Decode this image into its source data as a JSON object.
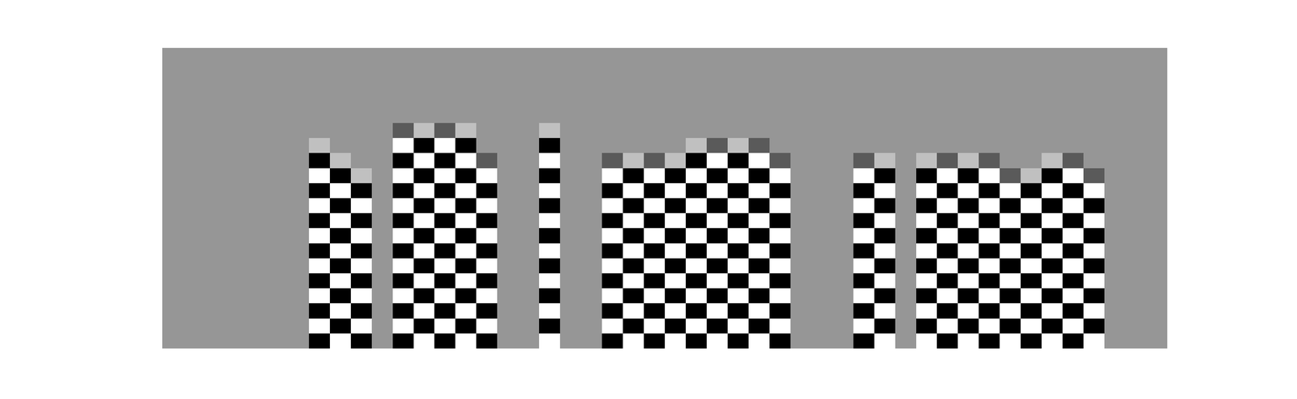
{
  "chart_data": {
    "type": "heatmap",
    "tick_labels": false,
    "grid": false,
    "xlim": [
      -0.5,
      47.5
    ],
    "ylim": [
      19.5,
      -0.5
    ],
    "zlim": [
      -1,
      1
    ],
    "z": [
      [
        0,
        0,
        0,
        0,
        0,
        0,
        0,
        0,
        0,
        0,
        0,
        0,
        0,
        0,
        0,
        0,
        0,
        0,
        0,
        0,
        0,
        0,
        0,
        0,
        0,
        0,
        0,
        0,
        0,
        0,
        0,
        0,
        0,
        0,
        0,
        0,
        0,
        0,
        0,
        0,
        0,
        0,
        0,
        0,
        0,
        0,
        0,
        0
      ],
      [
        0,
        0,
        0,
        0,
        0,
        0,
        0,
        0,
        0,
        0,
        0,
        0,
        0,
        0,
        0,
        0,
        0,
        0,
        0,
        0,
        0,
        0,
        0,
        0,
        0,
        0,
        0,
        0,
        0,
        0,
        0,
        0,
        0,
        0,
        0,
        0,
        0,
        0,
        0,
        0,
        0,
        0,
        0,
        0,
        0,
        0,
        0,
        0
      ],
      [
        0,
        0,
        0,
        0,
        0,
        0,
        0,
        0,
        0,
        0,
        0,
        0,
        0,
        0,
        0,
        0,
        0,
        0,
        0,
        0,
        0,
        0,
        0,
        0,
        0,
        0,
        0,
        0,
        0,
        0,
        0,
        0,
        0,
        0,
        0,
        0,
        0,
        0,
        0,
        0,
        0,
        0,
        0,
        0,
        0,
        0,
        0,
        0
      ],
      [
        0,
        0,
        0,
        0,
        0,
        0,
        0,
        0,
        0,
        0,
        0,
        0,
        0,
        0,
        0,
        0,
        0,
        0,
        0,
        0,
        0,
        0,
        0,
        0,
        0,
        0,
        0,
        0,
        0,
        0,
        0,
        0,
        0,
        0,
        0,
        0,
        0,
        0,
        0,
        0,
        0,
        0,
        0,
        0,
        0,
        0,
        0,
        0
      ],
      [
        0,
        0,
        0,
        0,
        0,
        0,
        0,
        0,
        0,
        0,
        0,
        0,
        0,
        0,
        0,
        0,
        0,
        0,
        0,
        0,
        0,
        0,
        0,
        0,
        0,
        0,
        0,
        0,
        0,
        0,
        0,
        0,
        0,
        0,
        0,
        0,
        0,
        0,
        0,
        0,
        0,
        0,
        0,
        0,
        0,
        0,
        0,
        0
      ],
      [
        0,
        0,
        0,
        0,
        0,
        0,
        0,
        0,
        0,
        0,
        0,
        -0.4,
        0.4,
        -0.4,
        0.4,
        0,
        0,
        0,
        0.4,
        0,
        0,
        0,
        0,
        0,
        0,
        0,
        0,
        0,
        0,
        0,
        0,
        0,
        0,
        0,
        0,
        0,
        0,
        0,
        0,
        0,
        0,
        0,
        0,
        0,
        0,
        0,
        0,
        0
      ],
      [
        0,
        0,
        0,
        0,
        0,
        0,
        0,
        0.4,
        0,
        0,
        0,
        1,
        -1,
        1,
        -1,
        0,
        0,
        0,
        -1,
        0,
        0,
        0,
        0,
        0,
        0,
        0.4,
        -0.4,
        0.4,
        -0.4,
        0,
        0,
        0,
        0,
        0,
        0,
        0,
        0,
        0,
        0,
        0,
        0,
        0,
        0,
        0,
        0,
        0,
        0,
        0
      ],
      [
        0,
        0,
        0,
        0,
        0,
        0,
        0,
        -1,
        0.4,
        0,
        0,
        -1,
        1,
        -1,
        1,
        -0.4,
        0,
        0,
        1,
        0,
        0,
        -0.4,
        0.4,
        -0.4,
        0.4,
        -1,
        1,
        -1,
        1,
        -0.4,
        0,
        0,
        0,
        -0.4,
        0.4,
        0,
        0.4,
        -0.4,
        0.4,
        -0.4,
        0,
        0,
        0.4,
        -0.4,
        0,
        0,
        0,
        0
      ],
      [
        0,
        0,
        0,
        0,
        0,
        0,
        0,
        1,
        -1,
        0.4,
        0,
        1,
        -1,
        1,
        -1,
        1,
        0,
        0,
        -1,
        0,
        0,
        1,
        -1,
        1,
        -1,
        1,
        -1,
        1,
        -1,
        1,
        0,
        0,
        0,
        1,
        -1,
        0,
        -1,
        1,
        -1,
        1,
        -0.4,
        0.4,
        -1,
        1,
        -0.4,
        0,
        0,
        0
      ],
      [
        0,
        0,
        0,
        0,
        0,
        0,
        0,
        -1,
        1,
        -1,
        0,
        -1,
        1,
        -1,
        1,
        -1,
        0,
        0,
        1,
        0,
        0,
        -1,
        1,
        -1,
        1,
        -1,
        1,
        -1,
        1,
        -1,
        0,
        0,
        0,
        -1,
        1,
        0,
        1,
        -1,
        1,
        -1,
        1,
        -1,
        1,
        -1,
        1,
        0,
        0,
        0
      ],
      [
        0,
        0,
        0,
        0,
        0,
        0,
        0,
        1,
        -1,
        1,
        0,
        1,
        -1,
        1,
        -1,
        1,
        0,
        0,
        -1,
        0,
        0,
        1,
        -1,
        1,
        -1,
        1,
        -1,
        1,
        -1,
        1,
        0,
        0,
        0,
        1,
        -1,
        0,
        -1,
        1,
        -1,
        1,
        -1,
        1,
        -1,
        1,
        -1,
        0,
        0,
        0
      ],
      [
        0,
        0,
        0,
        0,
        0,
        0,
        0,
        -1,
        1,
        -1,
        0,
        -1,
        1,
        -1,
        1,
        -1,
        0,
        0,
        1,
        0,
        0,
        -1,
        1,
        -1,
        1,
        -1,
        1,
        -1,
        1,
        -1,
        0,
        0,
        0,
        -1,
        1,
        0,
        1,
        -1,
        1,
        -1,
        1,
        -1,
        1,
        -1,
        1,
        0,
        0,
        0
      ],
      [
        0,
        0,
        0,
        0,
        0,
        0,
        0,
        1,
        -1,
        1,
        0,
        1,
        -1,
        1,
        -1,
        1,
        0,
        0,
        -1,
        0,
        0,
        1,
        -1,
        1,
        -1,
        1,
        -1,
        1,
        -1,
        1,
        0,
        0,
        0,
        1,
        -1,
        0,
        -1,
        1,
        -1,
        1,
        -1,
        1,
        -1,
        1,
        -1,
        0,
        0,
        0
      ],
      [
        0,
        0,
        0,
        0,
        0,
        0,
        0,
        -1,
        1,
        -1,
        0,
        -1,
        1,
        -1,
        1,
        -1,
        0,
        0,
        1,
        0,
        0,
        -1,
        1,
        -1,
        1,
        -1,
        1,
        -1,
        1,
        -1,
        0,
        0,
        0,
        -1,
        1,
        0,
        1,
        -1,
        1,
        -1,
        1,
        -1,
        1,
        -1,
        1,
        0,
        0,
        0
      ],
      [
        0,
        0,
        0,
        0,
        0,
        0,
        0,
        1,
        -1,
        1,
        0,
        1,
        -1,
        1,
        -1,
        1,
        0,
        0,
        -1,
        0,
        0,
        1,
        -1,
        1,
        -1,
        1,
        -1,
        1,
        -1,
        1,
        0,
        0,
        0,
        1,
        -1,
        0,
        -1,
        1,
        -1,
        1,
        -1,
        1,
        -1,
        1,
        -1,
        0,
        0,
        0
      ],
      [
        0,
        0,
        0,
        0,
        0,
        0,
        0,
        -1,
        1,
        -1,
        0,
        -1,
        1,
        -1,
        1,
        -1,
        0,
        0,
        1,
        0,
        0,
        -1,
        1,
        -1,
        1,
        -1,
        1,
        -1,
        1,
        -1,
        0,
        0,
        0,
        -1,
        1,
        0,
        1,
        -1,
        1,
        -1,
        1,
        -1,
        1,
        -1,
        1,
        0,
        0,
        0
      ],
      [
        0,
        0,
        0,
        0,
        0,
        0,
        0,
        1,
        -1,
        1,
        0,
        1,
        -1,
        1,
        -1,
        1,
        0,
        0,
        -1,
        0,
        0,
        1,
        -1,
        1,
        -1,
        1,
        -1,
        1,
        -1,
        1,
        0,
        0,
        0,
        1,
        -1,
        0,
        -1,
        1,
        -1,
        1,
        -1,
        1,
        -1,
        1,
        -1,
        0,
        0,
        0
      ],
      [
        0,
        0,
        0,
        0,
        0,
        0,
        0,
        -1,
        1,
        -1,
        0,
        -1,
        1,
        -1,
        1,
        -1,
        0,
        0,
        1,
        0,
        0,
        -1,
        1,
        -1,
        1,
        -1,
        1,
        -1,
        1,
        -1,
        0,
        0,
        0,
        -1,
        1,
        0,
        1,
        -1,
        1,
        -1,
        1,
        -1,
        1,
        -1,
        1,
        0,
        0,
        0
      ],
      [
        0,
        0,
        0,
        0,
        0,
        0,
        0,
        1,
        -1,
        1,
        0,
        1,
        -1,
        1,
        -1,
        1,
        0,
        0,
        -1,
        0,
        0,
        1,
        -1,
        1,
        -1,
        1,
        -1,
        1,
        -1,
        1,
        0,
        0,
        0,
        1,
        -1,
        0,
        -1,
        1,
        -1,
        1,
        -1,
        1,
        -1,
        1,
        -1,
        0,
        0,
        0
      ],
      [
        0,
        0,
        0,
        0,
        0,
        0,
        0,
        -1,
        1,
        -1,
        0,
        -1,
        1,
        -1,
        1,
        -1,
        0,
        0,
        1,
        0,
        0,
        -1,
        1,
        -1,
        1,
        -1,
        1,
        -1,
        1,
        -1,
        0,
        0,
        0,
        -1,
        1,
        0,
        1,
        -1,
        1,
        -1,
        1,
        -1,
        1,
        -1,
        1,
        0,
        0,
        0
      ]
    ]
  }
}
